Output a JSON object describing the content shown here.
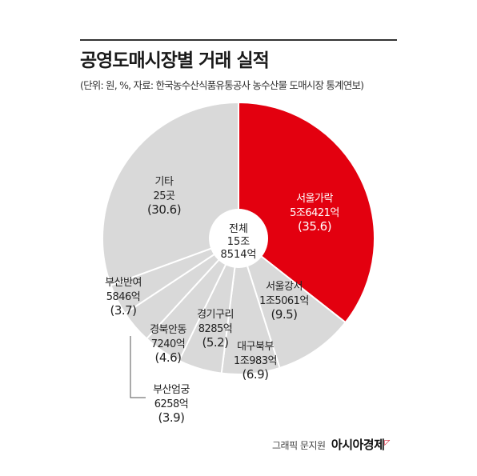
{
  "header": {
    "title": "공영도매시장별 거래 실적",
    "subtitle": "(단위: 원, %, 자료: 한국농수산식품유통공사 농수산물 도매시장 통계연보)"
  },
  "center_label": {
    "line1": "전체",
    "line2": "15조",
    "line3": "8514억"
  },
  "footer": {
    "credit": "그래픽 문지원",
    "brand": "아시아경제"
  },
  "colors": {
    "highlight": "#e3000f",
    "default": "#d9d9d9",
    "separator": "#ffffff"
  },
  "chart_data": {
    "type": "pie",
    "title": "공영도매시장별 거래 실적",
    "unit": "원, %",
    "total": {
      "label": "전체",
      "value": "15조 8514억"
    },
    "slices": [
      {
        "name": "서울가락",
        "amount": "5조6421억",
        "percent": 35.6,
        "percent_label": "(35.6)",
        "highlight": true
      },
      {
        "name": "서울강서",
        "amount": "1조5061억",
        "percent": 9.5,
        "percent_label": "(9.5)",
        "highlight": false
      },
      {
        "name": "대구북부",
        "amount": "1조983억",
        "percent": 6.9,
        "percent_label": "(6.9)",
        "highlight": false
      },
      {
        "name": "경기구리",
        "amount": "8285억",
        "percent": 5.2,
        "percent_label": "(5.2)",
        "highlight": false
      },
      {
        "name": "경북안동",
        "amount": "7240억",
        "percent": 4.6,
        "percent_label": "(4.6)",
        "highlight": false
      },
      {
        "name": "부산엄궁",
        "amount": "6258억",
        "percent": 3.9,
        "percent_label": "(3.9)",
        "highlight": false
      },
      {
        "name": "부산반여",
        "amount": "5846억",
        "percent": 3.7,
        "percent_label": "(3.7)",
        "highlight": false
      },
      {
        "name": "기타",
        "amount": "25곳",
        "percent": 30.6,
        "percent_label": "(30.6)",
        "highlight": false
      }
    ]
  }
}
